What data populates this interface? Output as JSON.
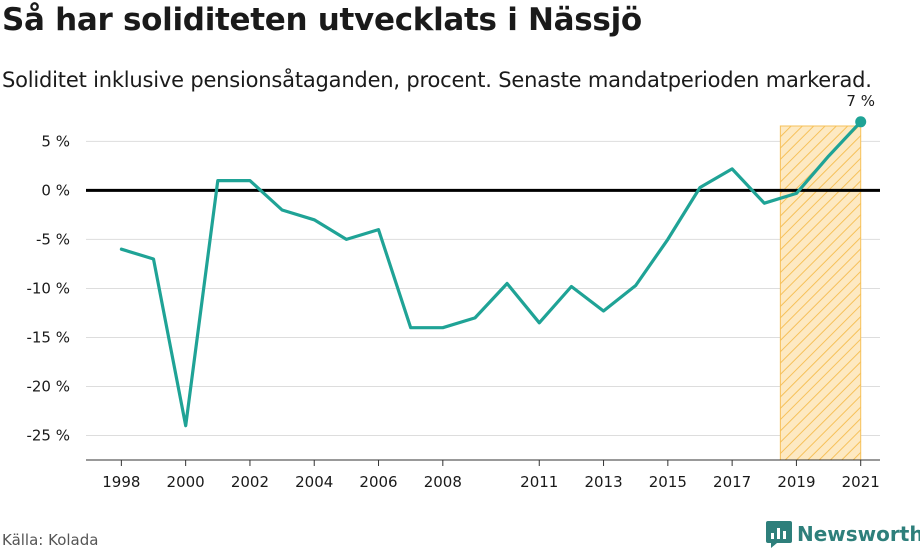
{
  "title": "Så har soliditeten utvecklats i Nässjö",
  "subtitle": "Soliditet inklusive pensionsåtaganden, procent. Senaste mandatperioden markerad.",
  "source": "Källa: Kolada",
  "brand": {
    "name": "Newsworthy",
    "color": "#2e7f7b"
  },
  "colors": {
    "line": "#1fa396",
    "highlight_fill": "#fde9c2",
    "highlight_stroke": "#f6c15a",
    "zero_line": "#000000",
    "grid": "#dddddd"
  },
  "chart_data": {
    "type": "line",
    "title": "Så har soliditeten utvecklats i Nässjö",
    "ylabel": "",
    "xlabel": "",
    "ylim": [
      -27.5,
      8
    ],
    "xlim": [
      1996.9,
      2021.6
    ],
    "grid": true,
    "yticks": [
      {
        "value": 5,
        "label": "5 %"
      },
      {
        "value": 0,
        "label": "0 %"
      },
      {
        "value": -5,
        "label": "-5 %"
      },
      {
        "value": -10,
        "label": "-10 %"
      },
      {
        "value": -15,
        "label": "-15 %"
      },
      {
        "value": -20,
        "label": "-20 %"
      },
      {
        "value": -25,
        "label": "-25 %"
      }
    ],
    "xticks": [
      {
        "value": 1998,
        "label": "1998"
      },
      {
        "value": 2000,
        "label": "2000"
      },
      {
        "value": 2002,
        "label": "2002"
      },
      {
        "value": 2004,
        "label": "2004"
      },
      {
        "value": 2006,
        "label": "2006"
      },
      {
        "value": 2008,
        "label": "2008"
      },
      {
        "value": 2011,
        "label": "2011"
      },
      {
        "value": 2013,
        "label": "2013"
      },
      {
        "value": 2015,
        "label": "2015"
      },
      {
        "value": 2017,
        "label": "2017"
      },
      {
        "value": 2019,
        "label": "2019"
      },
      {
        "value": 2021,
        "label": "2021"
      }
    ],
    "highlight_range": [
      2018.5,
      2021
    ],
    "series": [
      {
        "points": [
          [
            1998,
            -6
          ],
          [
            1999,
            -7
          ],
          [
            2000,
            -24
          ],
          [
            2001,
            1
          ],
          [
            2002,
            1
          ],
          [
            2003,
            -2
          ],
          [
            2004,
            -3
          ],
          [
            2005,
            -5
          ],
          [
            2006,
            -4
          ],
          [
            2007,
            -14
          ],
          [
            2008,
            -14
          ],
          [
            2009,
            -13
          ],
          [
            2010,
            -9.5
          ],
          [
            2011,
            -13.5
          ],
          [
            2012,
            -9.8
          ],
          [
            2013,
            -12.3
          ],
          [
            2014,
            -9.7
          ],
          [
            2015,
            -5
          ],
          [
            2016,
            0.3
          ],
          [
            2017,
            2.2
          ],
          [
            2018,
            -1.3
          ],
          [
            2019,
            -0.3
          ],
          [
            2020,
            3.5
          ],
          [
            2021,
            7
          ]
        ]
      }
    ],
    "last_value_label": "7 %"
  }
}
